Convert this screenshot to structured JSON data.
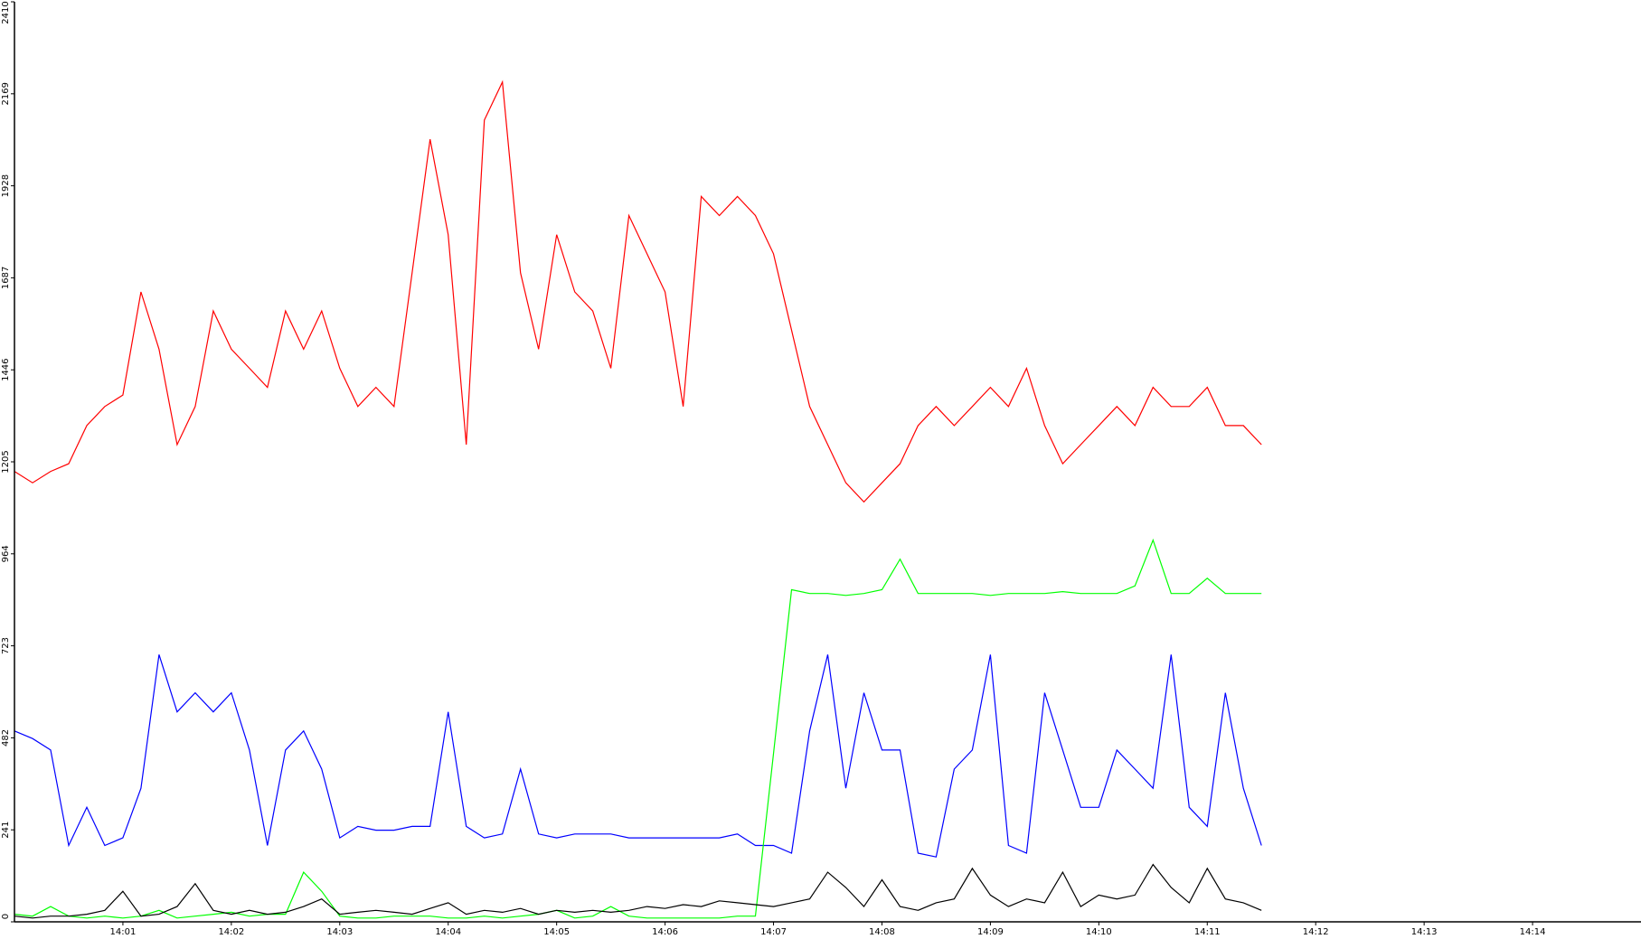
{
  "chart_data": {
    "type": "line",
    "categories": [
      null,
      null,
      null,
      null,
      null,
      null,
      "14:01",
      null,
      null,
      null,
      null,
      null,
      "14:02",
      null,
      null,
      null,
      null,
      null,
      "14:03",
      null,
      null,
      null,
      null,
      null,
      "14:04",
      null,
      null,
      null,
      null,
      null,
      "14:05",
      null,
      null,
      null,
      null,
      null,
      "14:06",
      null,
      null,
      null,
      null,
      null,
      "14:07",
      null,
      null,
      null,
      null,
      null,
      "14:08",
      null,
      null,
      null,
      null,
      null,
      "14:09",
      null,
      null,
      null,
      null,
      null,
      "14:10",
      null,
      null,
      null,
      null,
      null,
      "14:11",
      null,
      null,
      null,
      null,
      null,
      "14:12",
      null,
      null,
      null,
      null,
      null,
      "14:13",
      null,
      null,
      null,
      null,
      null,
      "14:14",
      null,
      null,
      null,
      null,
      null
    ],
    "series": [
      {
        "color": "#ff0000",
        "values": [
          1180,
          1150,
          1180,
          1200,
          1300,
          1350,
          1380,
          1650,
          1500,
          1250,
          1350,
          1600,
          1500,
          1450,
          1400,
          1600,
          1500,
          1600,
          1450,
          1350,
          1400,
          1350,
          1700,
          2050,
          1800,
          1250,
          2100,
          2200,
          1700,
          1500,
          1800,
          1650,
          1600,
          1450,
          1850,
          1750,
          1650,
          1350,
          1900,
          1850,
          1900,
          1850,
          1750,
          1550,
          1350,
          1250,
          1150,
          1100,
          1150,
          1200,
          1300,
          1350,
          1300,
          1350,
          1400,
          1350,
          1450,
          1300,
          1200,
          1250,
          1300,
          1350,
          1300,
          1400,
          1350,
          1350,
          1400,
          1300,
          1300,
          1250,
          null,
          null,
          null,
          null,
          null,
          null,
          null,
          null,
          null,
          null,
          null,
          null,
          null,
          null,
          null,
          null,
          null,
          null,
          null,
          null
        ]
      },
      {
        "color": "#0000ff",
        "values": [
          500,
          480,
          450,
          200,
          300,
          200,
          220,
          350,
          700,
          550,
          600,
          550,
          600,
          450,
          200,
          450,
          500,
          400,
          220,
          250,
          240,
          240,
          250,
          250,
          550,
          250,
          220,
          230,
          400,
          230,
          220,
          230,
          230,
          230,
          220,
          220,
          220,
          220,
          220,
          220,
          230,
          200,
          200,
          180,
          500,
          700,
          350,
          600,
          450,
          450,
          180,
          170,
          400,
          450,
          700,
          200,
          180,
          600,
          450,
          300,
          300,
          450,
          400,
          350,
          700,
          300,
          250,
          600,
          350,
          200,
          null,
          null,
          null,
          null,
          null,
          null,
          null,
          null,
          null,
          null,
          null,
          null,
          null,
          null,
          null,
          null,
          null,
          null,
          null,
          null
        ]
      },
      {
        "color": "#00ff00",
        "values": [
          20,
          15,
          40,
          15,
          10,
          15,
          10,
          15,
          30,
          10,
          15,
          20,
          25,
          15,
          20,
          20,
          130,
          80,
          15,
          10,
          10,
          15,
          15,
          15,
          10,
          10,
          15,
          10,
          15,
          20,
          30,
          10,
          15,
          40,
          15,
          10,
          10,
          10,
          10,
          10,
          15,
          15,
          440,
          870,
          860,
          860,
          855,
          860,
          870,
          950,
          860,
          860,
          860,
          860,
          855,
          860,
          860,
          860,
          865,
          860,
          860,
          860,
          880,
          1000,
          860,
          860,
          900,
          860,
          860,
          860,
          null,
          null,
          null,
          null,
          null,
          null,
          null,
          null,
          null,
          null,
          null,
          null,
          null,
          null,
          null,
          null,
          null,
          null,
          null,
          null
        ]
      },
      {
        "color": "#000000",
        "values": [
          15,
          10,
          15,
          15,
          20,
          30,
          80,
          15,
          20,
          40,
          100,
          30,
          20,
          30,
          20,
          25,
          40,
          60,
          20,
          25,
          30,
          25,
          20,
          35,
          50,
          20,
          30,
          25,
          35,
          20,
          30,
          25,
          30,
          25,
          30,
          40,
          35,
          45,
          40,
          55,
          50,
          45,
          40,
          50,
          60,
          130,
          90,
          40,
          110,
          40,
          30,
          50,
          60,
          140,
          70,
          40,
          60,
          50,
          130,
          40,
          70,
          60,
          70,
          150,
          90,
          50,
          140,
          60,
          50,
          30,
          null,
          null,
          null,
          null,
          null,
          null,
          null,
          null,
          null,
          null,
          null,
          null,
          null,
          null,
          null,
          null,
          null,
          null,
          null,
          null
        ]
      }
    ],
    "ylim": [
      0,
      2410
    ],
    "yticks": [
      0,
      241,
      482,
      723,
      964,
      1205,
      1446,
      1687,
      1928,
      2169,
      2410
    ]
  }
}
